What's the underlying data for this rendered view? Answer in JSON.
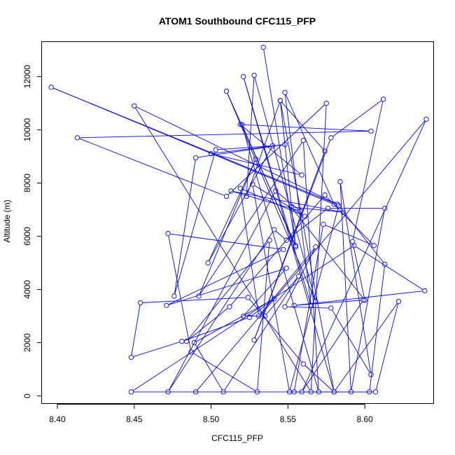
{
  "chart_data": {
    "type": "line",
    "title": "ATOM1 Southbound CFC115_PFP",
    "xlabel": "CFC115_PFP",
    "ylabel": "Altitude (m)",
    "xlim": [
      8.39,
      8.645
    ],
    "ylim": [
      -300,
      13300
    ],
    "xticks": [
      "8.40",
      "8.45",
      "8.50",
      "8.55",
      "8.60"
    ],
    "xtick_values": [
      8.4,
      8.45,
      8.5,
      8.55,
      8.6
    ],
    "yticks": [
      "0",
      "2000",
      "4000",
      "6000",
      "8000",
      "10000",
      "12000"
    ],
    "ytick_values": [
      0,
      2000,
      4000,
      6000,
      8000,
      10000,
      12000
    ],
    "grid": false,
    "series": [
      {
        "color": "#0000ff",
        "marker": "open-circle",
        "points": [
          [
            8.534,
            13100
          ],
          [
            8.555,
            5650
          ],
          [
            8.51,
            11450
          ],
          [
            8.568,
            3550
          ],
          [
            8.528,
            12050
          ],
          [
            8.523,
            7500
          ],
          [
            8.545,
            11100
          ],
          [
            8.58,
            150
          ],
          [
            8.521,
            12000
          ],
          [
            8.565,
            3400
          ],
          [
            8.548,
            11400
          ],
          [
            8.58,
            7200
          ],
          [
            8.396,
            11600
          ],
          [
            8.582,
            7200
          ],
          [
            8.45,
            10900
          ],
          [
            8.565,
            150
          ],
          [
            8.575,
            11000
          ],
          [
            8.51,
            7500
          ],
          [
            8.413,
            9700
          ],
          [
            8.604,
            9950
          ],
          [
            8.519,
            10200
          ],
          [
            8.559,
            8300
          ],
          [
            8.5,
            9100
          ],
          [
            8.548,
            9450
          ],
          [
            8.49,
            8950
          ],
          [
            8.476,
            3750
          ],
          [
            8.503,
            9250
          ],
          [
            8.54,
            9400
          ],
          [
            8.498,
            5000
          ],
          [
            8.529,
            8900
          ],
          [
            8.492,
            3750
          ],
          [
            8.56,
            9600
          ],
          [
            8.57,
            150
          ],
          [
            8.52,
            10200
          ],
          [
            8.555,
            5600
          ],
          [
            8.545,
            11100
          ],
          [
            8.574,
            9200
          ],
          [
            8.528,
            2100
          ],
          [
            8.578,
            9700
          ],
          [
            8.612,
            11150
          ],
          [
            8.592,
            5800
          ],
          [
            8.6,
            3600
          ],
          [
            8.552,
            7100
          ],
          [
            8.586,
            6900
          ],
          [
            8.513,
            7700
          ],
          [
            8.558,
            6950
          ],
          [
            8.542,
            7700
          ],
          [
            8.472,
            150
          ],
          [
            8.541,
            6250
          ],
          [
            8.549,
            5850
          ],
          [
            8.576,
            7050
          ],
          [
            8.613,
            7050
          ],
          [
            8.591,
            150
          ],
          [
            8.584,
            8050
          ],
          [
            8.604,
            800
          ],
          [
            8.578,
            3300
          ],
          [
            8.548,
            3350
          ],
          [
            8.568,
            5600
          ],
          [
            8.531,
            3000
          ],
          [
            8.519,
            7800
          ],
          [
            8.561,
            6750
          ],
          [
            8.527,
            7950
          ],
          [
            8.551,
            150
          ],
          [
            8.583,
            7150
          ],
          [
            8.613,
            4950
          ],
          [
            8.603,
            150
          ],
          [
            8.554,
            150
          ],
          [
            8.573,
            6450
          ],
          [
            8.606,
            5650
          ],
          [
            8.574,
            7550
          ],
          [
            8.512,
            3350
          ],
          [
            8.484,
            2050
          ],
          [
            8.538,
            5850
          ],
          [
            8.53,
            150
          ],
          [
            8.487,
            1650
          ],
          [
            8.472,
            6100
          ],
          [
            8.547,
            5500
          ],
          [
            8.471,
            3400
          ],
          [
            8.549,
            4800
          ],
          [
            8.521,
            3000
          ],
          [
            8.535,
            3000
          ],
          [
            8.557,
            4500
          ],
          [
            8.508,
            150
          ],
          [
            8.489,
            2000
          ],
          [
            8.541,
            3650
          ],
          [
            8.525,
            2950
          ],
          [
            8.481,
            2050
          ],
          [
            8.448,
            1450
          ],
          [
            8.454,
            3500
          ],
          [
            8.524,
            3700
          ],
          [
            8.56,
            1200
          ],
          [
            8.58,
            150
          ],
          [
            8.622,
            3550
          ],
          [
            8.607,
            150
          ],
          [
            8.448,
            150
          ],
          [
            8.593,
            5650
          ],
          [
            8.639,
            3950
          ],
          [
            8.554,
            3400
          ],
          [
            8.599,
            3600
          ],
          [
            8.559,
            150
          ],
          [
            8.64,
            10400
          ],
          [
            8.49,
            150
          ]
        ]
      }
    ]
  }
}
